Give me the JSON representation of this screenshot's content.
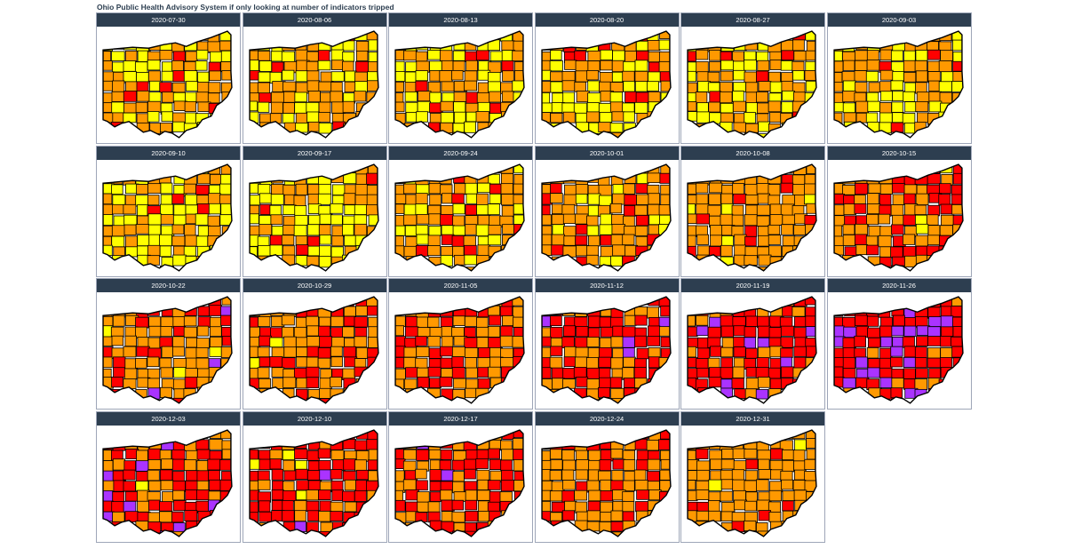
{
  "title": "Ohio Public Health Advisory System if only looking at number of indicators tripped",
  "colors": {
    "yellow": "#ffff00",
    "orange": "#ff9900",
    "red": "#ff0000",
    "purple": "#aa33ff",
    "header_bg": "#2d3e50"
  },
  "panels": [
    {
      "date": "2020-07-30",
      "mix": {
        "yellow": 0.42,
        "orange": 0.5,
        "red": 0.08,
        "purple": 0.0
      }
    },
    {
      "date": "2020-08-06",
      "mix": {
        "yellow": 0.38,
        "orange": 0.55,
        "red": 0.07,
        "purple": 0.0
      }
    },
    {
      "date": "2020-08-13",
      "mix": {
        "yellow": 0.45,
        "orange": 0.47,
        "red": 0.08,
        "purple": 0.0
      }
    },
    {
      "date": "2020-08-20",
      "mix": {
        "yellow": 0.35,
        "orange": 0.57,
        "red": 0.08,
        "purple": 0.0
      }
    },
    {
      "date": "2020-08-27",
      "mix": {
        "yellow": 0.35,
        "orange": 0.58,
        "red": 0.07,
        "purple": 0.0
      }
    },
    {
      "date": "2020-09-03",
      "mix": {
        "yellow": 0.4,
        "orange": 0.52,
        "red": 0.08,
        "purple": 0.0
      }
    },
    {
      "date": "2020-09-10",
      "mix": {
        "yellow": 0.52,
        "orange": 0.43,
        "red": 0.05,
        "purple": 0.0
      }
    },
    {
      "date": "2020-09-17",
      "mix": {
        "yellow": 0.52,
        "orange": 0.45,
        "red": 0.03,
        "purple": 0.0
      }
    },
    {
      "date": "2020-09-24",
      "mix": {
        "yellow": 0.28,
        "orange": 0.62,
        "red": 0.1,
        "purple": 0.0
      }
    },
    {
      "date": "2020-10-01",
      "mix": {
        "yellow": 0.22,
        "orange": 0.66,
        "red": 0.1,
        "purple": 0.02
      }
    },
    {
      "date": "2020-10-08",
      "mix": {
        "yellow": 0.08,
        "orange": 0.76,
        "red": 0.16,
        "purple": 0.0
      }
    },
    {
      "date": "2020-10-15",
      "mix": {
        "yellow": 0.03,
        "orange": 0.6,
        "red": 0.37,
        "purple": 0.0
      }
    },
    {
      "date": "2020-10-22",
      "mix": {
        "yellow": 0.04,
        "orange": 0.62,
        "red": 0.29,
        "purple": 0.05
      }
    },
    {
      "date": "2020-10-29",
      "mix": {
        "yellow": 0.01,
        "orange": 0.66,
        "red": 0.33,
        "purple": 0.0
      }
    },
    {
      "date": "2020-11-05",
      "mix": {
        "yellow": 0.0,
        "orange": 0.55,
        "red": 0.45,
        "purple": 0.0
      }
    },
    {
      "date": "2020-11-12",
      "mix": {
        "yellow": 0.0,
        "orange": 0.3,
        "red": 0.66,
        "purple": 0.04
      }
    },
    {
      "date": "2020-11-19",
      "mix": {
        "yellow": 0.0,
        "orange": 0.28,
        "red": 0.62,
        "purple": 0.1
      }
    },
    {
      "date": "2020-11-26",
      "mix": {
        "yellow": 0.0,
        "orange": 0.12,
        "red": 0.68,
        "purple": 0.2
      }
    },
    {
      "date": "2020-12-03",
      "mix": {
        "yellow": 0.01,
        "orange": 0.32,
        "red": 0.57,
        "purple": 0.1
      }
    },
    {
      "date": "2020-12-10",
      "mix": {
        "yellow": 0.02,
        "orange": 0.28,
        "red": 0.65,
        "purple": 0.05
      }
    },
    {
      "date": "2020-12-17",
      "mix": {
        "yellow": 0.0,
        "orange": 0.44,
        "red": 0.54,
        "purple": 0.02
      }
    },
    {
      "date": "2020-12-24",
      "mix": {
        "yellow": 0.0,
        "orange": 0.68,
        "red": 0.32,
        "purple": 0.0
      }
    },
    {
      "date": "2020-12-31",
      "mix": {
        "yellow": 0.05,
        "orange": 0.88,
        "red": 0.07,
        "purple": 0.0
      }
    }
  ]
}
